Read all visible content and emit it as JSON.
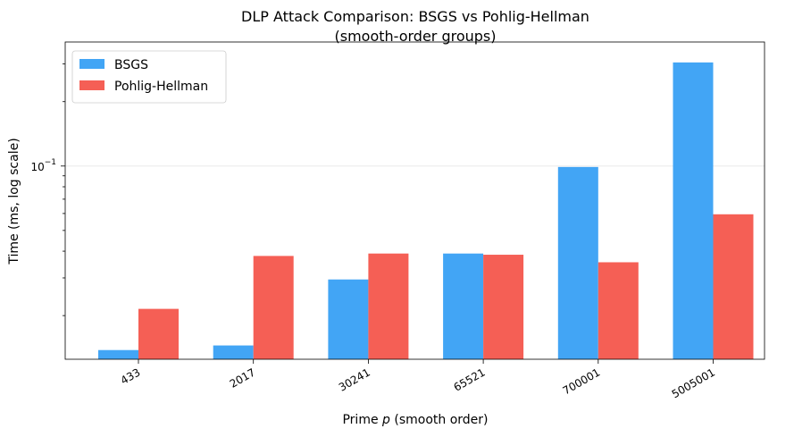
{
  "chart_data": {
    "type": "bar",
    "title": "DLP Attack Comparison: BSGS vs Pohlig-Hellman",
    "subtitle": "(smooth-order groups)",
    "xlabel_prefix": "Prime ",
    "xlabel_var": "p",
    "xlabel_suffix": " (smooth order)",
    "ylabel": "Time (ms, log scale)",
    "yscale": "log",
    "ylim": [
      0.0125,
      0.38
    ],
    "y_tick_label": {
      "base": "10",
      "exp": "−1",
      "value": 0.1
    },
    "categories": [
      "433",
      "2017",
      "30241",
      "65521",
      "700001",
      "5005001"
    ],
    "series": [
      {
        "name": "BSGS",
        "color": "#42a5f5",
        "values": [
          0.0138,
          0.0145,
          0.0295,
          0.039,
          0.099,
          0.305
        ]
      },
      {
        "name": "Pohlig-Hellman",
        "color": "#f55f55",
        "values": [
          0.0215,
          0.038,
          0.039,
          0.0385,
          0.0355,
          0.0595
        ]
      }
    ],
    "grid": "y-major",
    "legend": "upper-left"
  }
}
